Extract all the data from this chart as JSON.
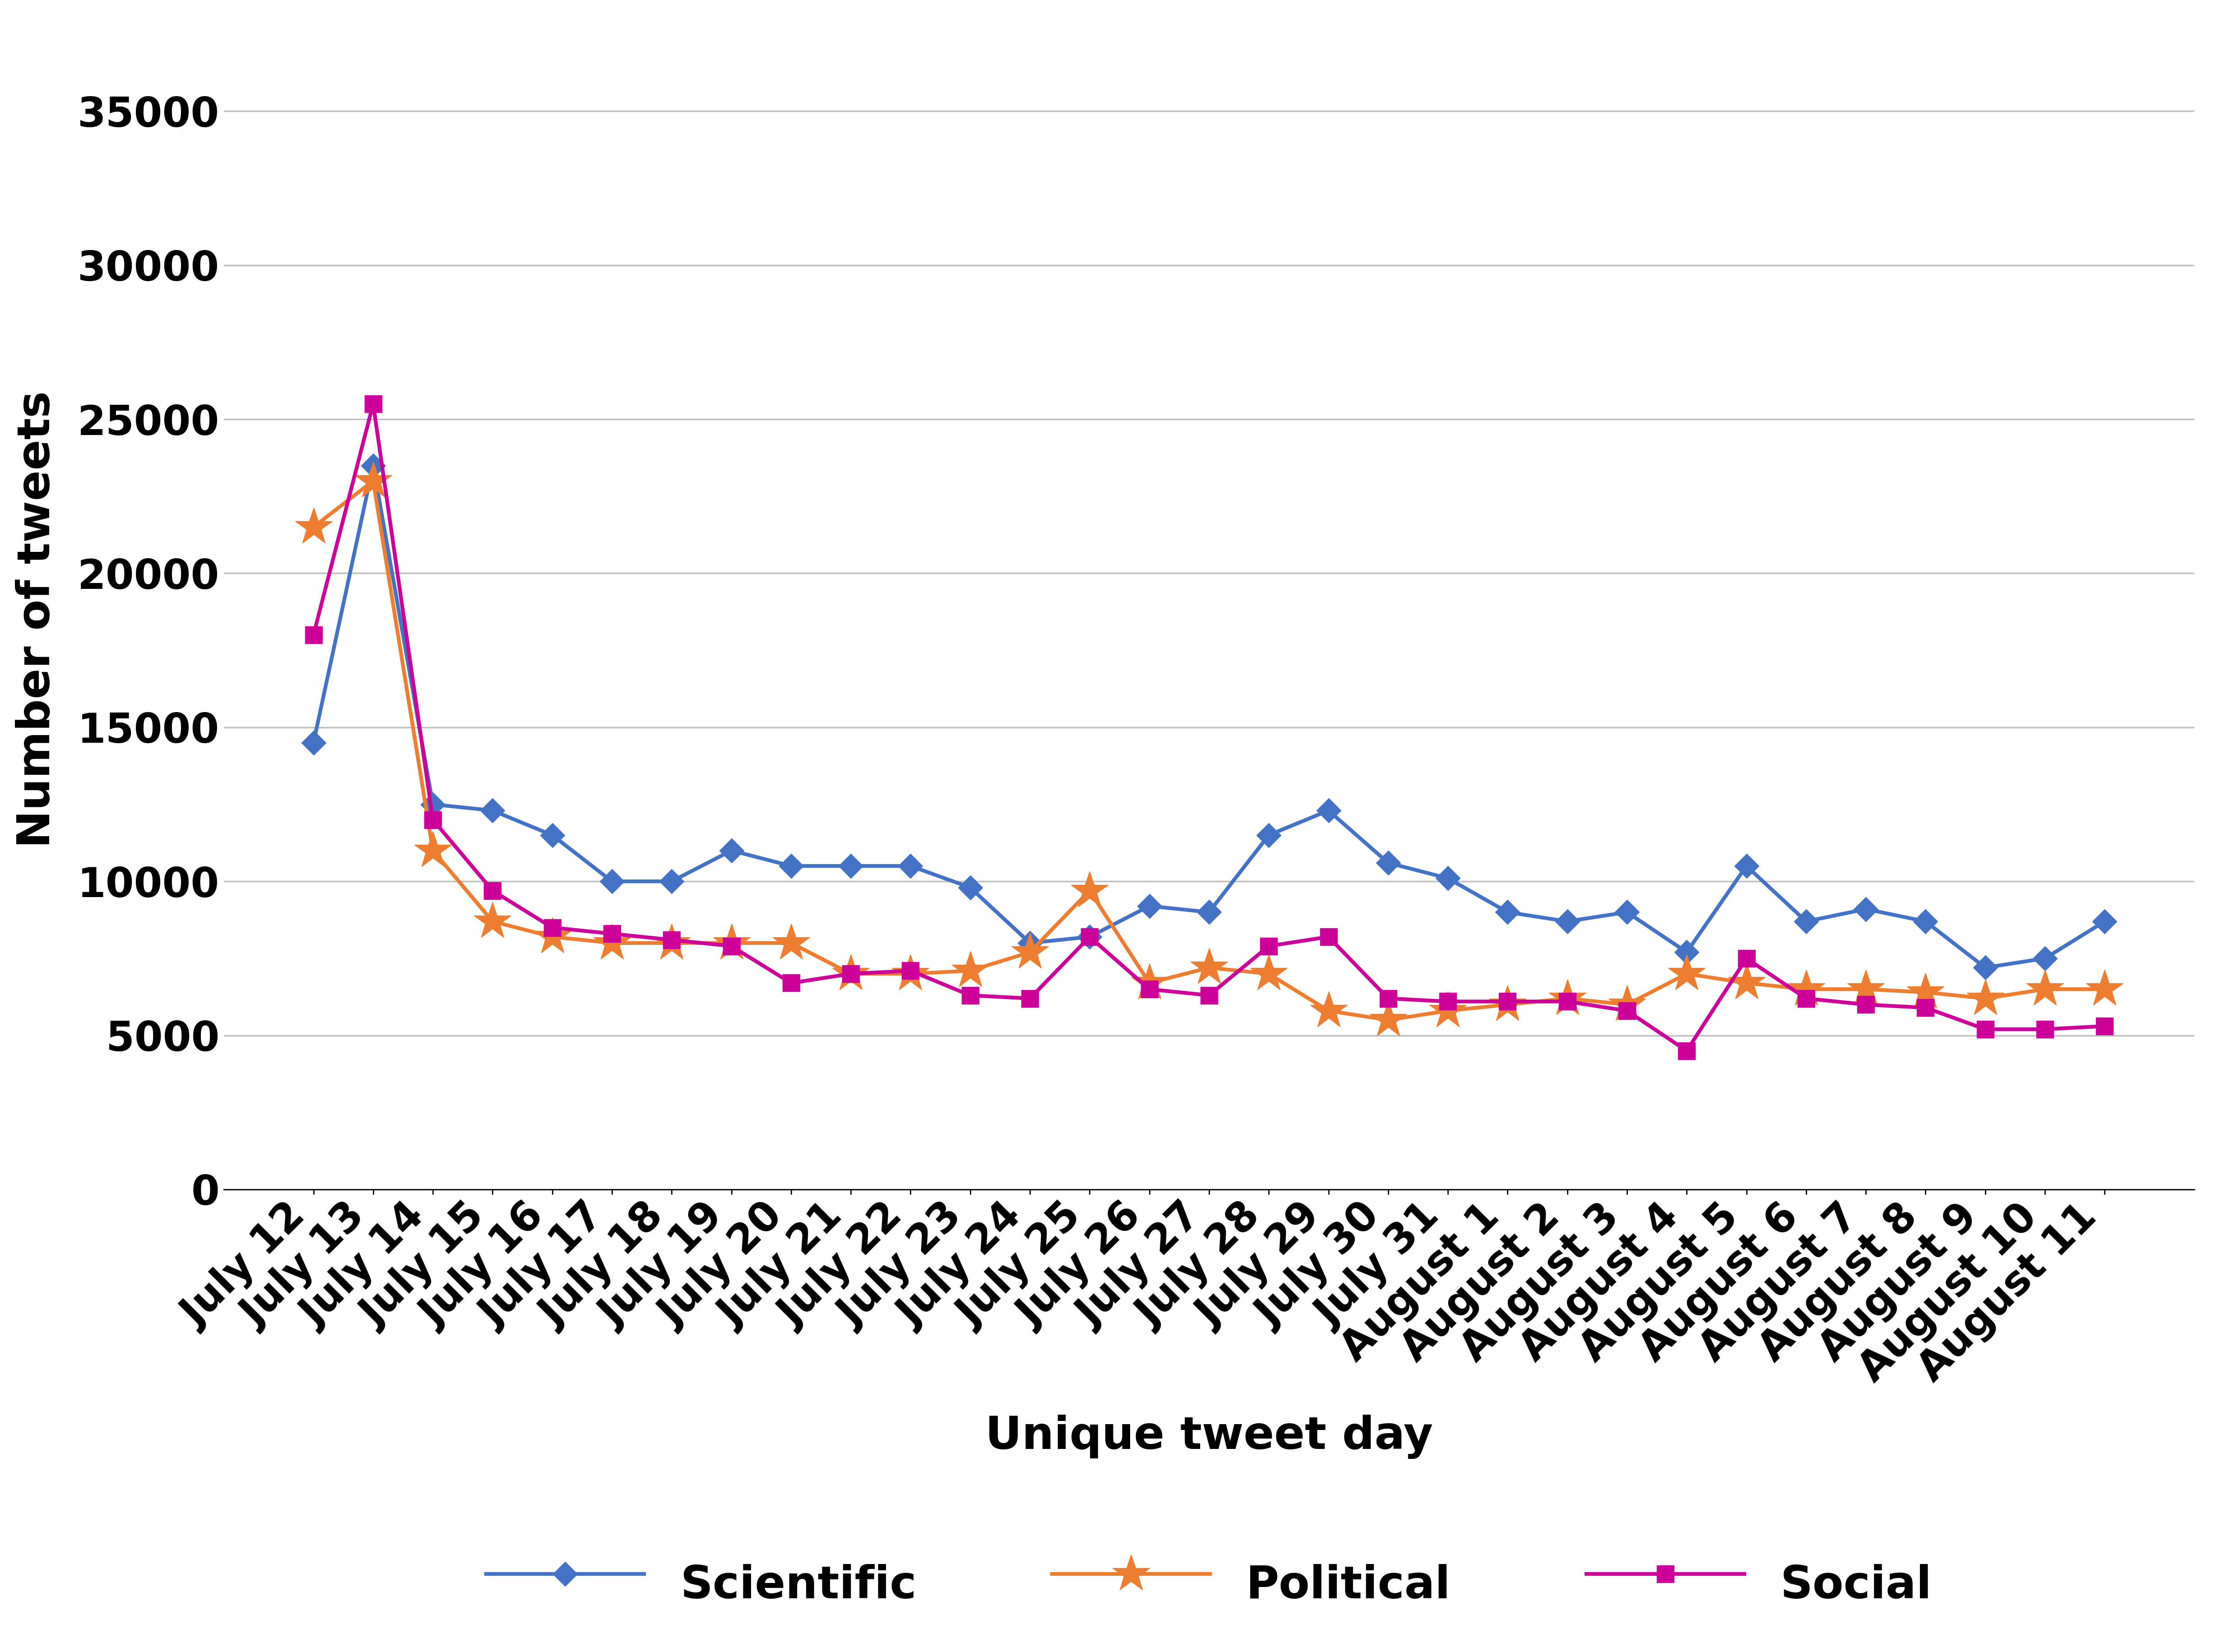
{
  "categories": [
    "July 12",
    "July 13",
    "July 14",
    "July 15",
    "July 16",
    "July 17",
    "July 18",
    "July 19",
    "July 20",
    "July 21",
    "July 22",
    "July 23",
    "July 24",
    "July 25",
    "July 26",
    "July 27",
    "July 28",
    "July 29",
    "July 30",
    "July 31",
    "August 1",
    "August 2",
    "August 3",
    "August 4",
    "August 5",
    "August 6",
    "August 7",
    "August 8",
    "August 9",
    "August 10",
    "August 11"
  ],
  "scientific": [
    14500,
    23500,
    12500,
    12300,
    11500,
    10000,
    10000,
    11000,
    10500,
    10500,
    10500,
    9800,
    8000,
    8200,
    9200,
    9000,
    11500,
    12300,
    10600,
    10100,
    9000,
    8700,
    9000,
    7700,
    10500,
    8700,
    9100,
    8700,
    7200,
    7500,
    8700
  ],
  "political": [
    21500,
    23000,
    11000,
    8700,
    8200,
    8000,
    8000,
    8000,
    8000,
    7000,
    7000,
    7100,
    7700,
    9700,
    6700,
    7200,
    7000,
    5800,
    5500,
    5800,
    6000,
    6200,
    6000,
    7000,
    6700,
    6500,
    6500,
    6400,
    6200,
    6500,
    6500
  ],
  "social": [
    18000,
    25500,
    12000,
    9700,
    8500,
    8300,
    8100,
    7900,
    6700,
    7000,
    7100,
    6300,
    6200,
    8200,
    6500,
    6300,
    7900,
    8200,
    6200,
    6100,
    6100,
    6100,
    5800,
    4500,
    7500,
    6200,
    6000,
    5900,
    5200,
    5200,
    5300
  ],
  "scientific_color": "#4472C4",
  "political_color": "#ED7D31",
  "social_color": "#CC0099",
  "ylabel": "Number of tweets",
  "xlabel": "Unique tweet day",
  "ylim": [
    0,
    37000
  ],
  "yticks": [
    0,
    5000,
    10000,
    15000,
    20000,
    25000,
    30000,
    35000
  ],
  "grid_color": "#C0C0C0",
  "background_color": "#FFFFFF",
  "legend_labels": [
    "Scientific",
    "Political",
    "Social"
  ],
  "label_fontsize": 72,
  "tick_fontsize": 65,
  "legend_fontsize": 72,
  "line_width": 6,
  "marker_size": 28
}
